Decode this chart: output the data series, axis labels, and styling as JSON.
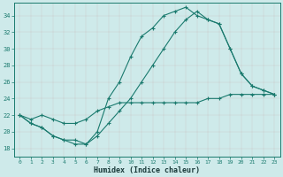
{
  "xlabel": "Humidex (Indice chaleur)",
  "bg_color": "#ceeaea",
  "grid_color": "#b8d8d8",
  "line_color": "#1a7a6e",
  "xlim": [
    -0.5,
    23.5
  ],
  "ylim": [
    17.0,
    35.5
  ],
  "xticks": [
    0,
    1,
    2,
    3,
    4,
    5,
    6,
    7,
    8,
    9,
    10,
    11,
    12,
    13,
    14,
    15,
    16,
    17,
    18,
    19,
    20,
    21,
    22,
    23
  ],
  "yticks": [
    18,
    20,
    22,
    24,
    26,
    28,
    30,
    32,
    34
  ],
  "line1_x": [
    0,
    1,
    2,
    3,
    4,
    5,
    6,
    7,
    8,
    9,
    10,
    11,
    12,
    13,
    14,
    15,
    16,
    17,
    18,
    19,
    20,
    21,
    22,
    23
  ],
  "line1_y": [
    22,
    21,
    20.5,
    19.5,
    19.0,
    18.5,
    18.5,
    20.0,
    24.0,
    26.0,
    29.0,
    31.5,
    32.5,
    34.0,
    34.5,
    35.0,
    34.0,
    33.5,
    33.0,
    30.0,
    27.0,
    25.5,
    25.0,
    24.5
  ],
  "line2_x": [
    0,
    1,
    2,
    3,
    4,
    5,
    6,
    7,
    8,
    9,
    10,
    11,
    12,
    13,
    14,
    15,
    16,
    17,
    18,
    19,
    20,
    21,
    22,
    23
  ],
  "line2_y": [
    22,
    21,
    20.5,
    19.5,
    19.0,
    19.0,
    18.5,
    19.5,
    21.0,
    22.5,
    24.0,
    26.0,
    28.0,
    30.0,
    32.0,
    33.5,
    34.5,
    33.5,
    33.0,
    30.0,
    27.0,
    25.5,
    25.0,
    24.5
  ],
  "line3_x": [
    0,
    1,
    2,
    3,
    4,
    5,
    6,
    7,
    8,
    9,
    10,
    11,
    12,
    13,
    14,
    15,
    16,
    17,
    18,
    19,
    20,
    21,
    22,
    23
  ],
  "line3_y": [
    22,
    21.5,
    22.0,
    21.5,
    21.0,
    21.0,
    21.5,
    22.5,
    23.0,
    23.5,
    23.5,
    23.5,
    23.5,
    23.5,
    23.5,
    23.5,
    23.5,
    24.0,
    24.0,
    24.5,
    24.5,
    24.5,
    24.5,
    24.5
  ]
}
